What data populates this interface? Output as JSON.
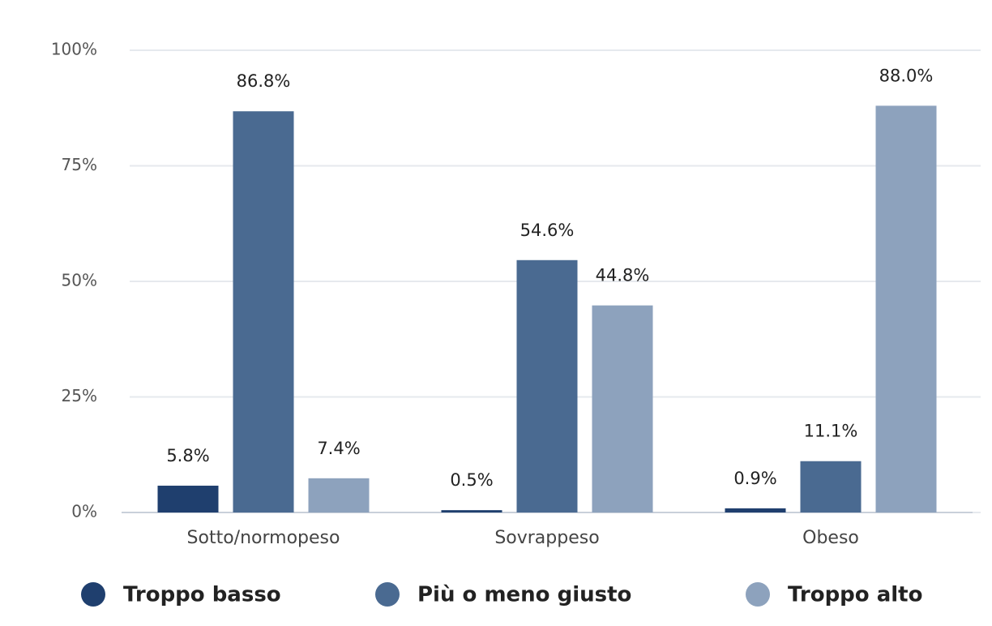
{
  "chart_data": {
    "type": "bar",
    "categories": [
      "Sotto/normopeso",
      "Sovrappeso",
      "Obeso"
    ],
    "series": [
      {
        "name": "Troppo basso",
        "color": "#1f3f6e",
        "values": [
          5.8,
          0.5,
          0.9
        ],
        "value_labels": [
          "5.8%",
          "0.5%",
          "0.9%"
        ]
      },
      {
        "name": "Più o meno giusto",
        "color": "#4a6a91",
        "values": [
          86.8,
          54.6,
          11.1
        ],
        "value_labels": [
          "86.8%",
          "54.6%",
          "11.1%"
        ]
      },
      {
        "name": "Troppo alto",
        "color": "#8da2bd",
        "values": [
          7.4,
          44.8,
          88.0
        ],
        "value_labels": [
          "7.4%",
          "44.8%",
          "88.0%"
        ]
      }
    ],
    "ylim": [
      0,
      100
    ],
    "yticks": [
      {
        "value": 0,
        "label": "0%"
      },
      {
        "value": 25,
        "label": "25%"
      },
      {
        "value": 50,
        "label": "50%"
      },
      {
        "value": 75,
        "label": "75%"
      },
      {
        "value": 100,
        "label": "100%"
      }
    ],
    "grid": true,
    "legend": "bottom"
  }
}
